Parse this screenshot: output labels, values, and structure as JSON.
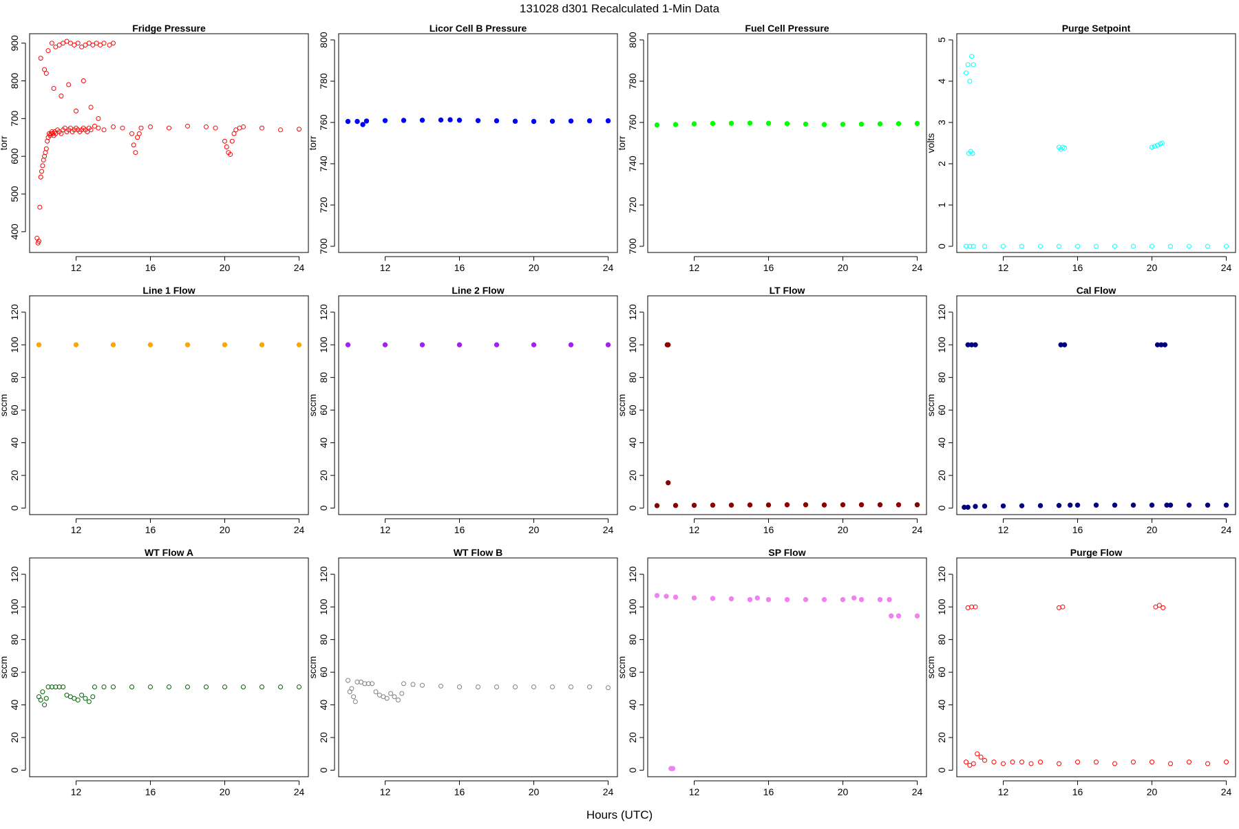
{
  "page": {
    "title": "131028   d301   Recalculated 1-Min Data",
    "xlabel": "Hours (UTC)"
  },
  "chart_data": [
    {
      "type": "scatter",
      "title": "Fridge Pressure",
      "ylabel": "torr",
      "xlim": [
        9.5,
        24.5
      ],
      "ylim": [
        345,
        925
      ],
      "xticks": [
        12,
        16,
        20,
        24
      ],
      "yticks": [
        400,
        500,
        600,
        700,
        800,
        900
      ],
      "color": "#ff0000",
      "marker": "open-circle",
      "series": [
        {
          "name": "",
          "x": [
            9.9,
            9.95,
            10.0,
            10.05,
            10.1,
            10.15,
            10.2,
            10.25,
            10.3,
            10.35,
            10.4,
            10.45,
            10.5,
            10.55,
            10.6,
            10.65,
            10.7,
            10.75,
            10.8,
            10.85,
            10.9,
            11.0,
            11.1,
            11.2,
            11.3,
            11.4,
            11.5,
            11.6,
            11.7,
            11.8,
            11.9,
            12.0,
            12.1,
            12.2,
            12.3,
            12.4,
            12.5,
            12.6,
            12.7,
            12.8,
            13.0,
            13.2,
            13.5,
            14.0,
            14.5,
            15.0,
            15.1,
            15.2,
            15.3,
            15.4,
            15.5,
            16.0,
            17.0,
            18.0,
            19.0,
            19.5,
            20.0,
            20.1,
            20.2,
            20.3,
            20.4,
            20.5,
            20.6,
            20.8,
            21.0,
            22.0,
            23.0,
            24.0,
            10.1,
            10.3,
            10.5,
            10.7,
            10.9,
            11.1,
            11.3,
            11.5,
            11.7,
            11.9,
            12.1,
            12.3,
            12.5,
            12.7,
            12.9,
            13.1,
            13.3,
            13.5,
            13.8,
            14.0,
            10.4,
            10.8,
            11.2,
            11.6,
            12.0,
            12.4,
            12.8,
            13.2
          ],
          "y": [
            383,
            370,
            375,
            465,
            545,
            560,
            575,
            590,
            600,
            610,
            620,
            640,
            650,
            660,
            655,
            660,
            665,
            660,
            655,
            665,
            660,
            670,
            665,
            660,
            670,
            675,
            665,
            670,
            675,
            665,
            670,
            675,
            670,
            665,
            670,
            675,
            670,
            665,
            675,
            670,
            680,
            675,
            670,
            678,
            675,
            660,
            630,
            610,
            650,
            660,
            675,
            678,
            675,
            680,
            678,
            675,
            640,
            625,
            610,
            605,
            640,
            660,
            670,
            675,
            678,
            675,
            670,
            672,
            860,
            830,
            880,
            900,
            890,
            895,
            900,
            905,
            900,
            895,
            900,
            890,
            895,
            900,
            895,
            900,
            895,
            900,
            895,
            900,
            820,
            780,
            760,
            790,
            720,
            800,
            730,
            700
          ]
        }
      ]
    },
    {
      "type": "scatter",
      "title": "Licor Cell B Pressure",
      "ylabel": "torr",
      "xlim": [
        9.5,
        24.5
      ],
      "ylim": [
        697,
        803
      ],
      "xticks": [
        12,
        16,
        20,
        24
      ],
      "yticks": [
        700,
        720,
        740,
        760,
        780,
        800
      ],
      "color": "#0000ff",
      "marker": "filled-band",
      "series": [
        {
          "name": "",
          "x": [
            10.0,
            10.5,
            10.8,
            11.0,
            12.0,
            13.0,
            14.0,
            15.0,
            15.5,
            16.0,
            17.0,
            18.0,
            19.0,
            20.0,
            21.0,
            22.0,
            23.0,
            24.0
          ],
          "y": [
            760.5,
            760.5,
            759,
            760.7,
            760.9,
            761.0,
            761.1,
            761.2,
            761.3,
            761.1,
            760.9,
            760.8,
            760.6,
            760.5,
            760.6,
            760.7,
            760.8,
            760.8
          ]
        }
      ]
    },
    {
      "type": "scatter",
      "title": "Fuel Cell Pressure",
      "ylabel": "torr",
      "xlim": [
        9.5,
        24.5
      ],
      "ylim": [
        697,
        803
      ],
      "xticks": [
        12,
        16,
        20,
        24
      ],
      "yticks": [
        700,
        720,
        740,
        760,
        780,
        800
      ],
      "color": "#00ff00",
      "marker": "filled-band",
      "series": [
        {
          "name": "",
          "x": [
            10.0,
            11.0,
            12.0,
            13.0,
            14.0,
            15.0,
            16.0,
            17.0,
            18.0,
            19.0,
            20.0,
            21.0,
            22.0,
            23.0,
            24.0
          ],
          "y": [
            758.8,
            759.0,
            759.3,
            759.5,
            759.6,
            759.7,
            759.6,
            759.4,
            759.2,
            759.0,
            759.1,
            759.2,
            759.3,
            759.4,
            759.5
          ]
        }
      ]
    },
    {
      "type": "scatter",
      "title": "Purge Setpoint",
      "ylabel": "volts",
      "xlim": [
        9.5,
        24.5
      ],
      "ylim": [
        -0.15,
        5.15
      ],
      "xticks": [
        12,
        16,
        20,
        24
      ],
      "yticks": [
        0,
        1,
        2,
        3,
        4,
        5
      ],
      "color": "#00ffff",
      "marker": "open-circle",
      "series": [
        {
          "name": "",
          "x": [
            10.0,
            10.2,
            10.4,
            11.0,
            12.0,
            13.0,
            14.0,
            15.0,
            16.0,
            17.0,
            18.0,
            19.0,
            20.0,
            21.0,
            22.0,
            23.0,
            24.0,
            10.0,
            10.1,
            10.2,
            10.3,
            10.4,
            10.15,
            10.25,
            10.35,
            15.0,
            15.1,
            15.2,
            15.3,
            20.0,
            20.15,
            20.3,
            20.45,
            20.55
          ],
          "y": [
            0,
            0,
            0,
            0,
            0,
            0,
            0,
            0,
            0,
            0,
            0,
            0,
            0,
            0,
            0,
            0,
            0,
            4.2,
            4.4,
            4.0,
            4.6,
            4.4,
            2.25,
            2.3,
            2.25,
            2.4,
            2.35,
            2.4,
            2.38,
            2.4,
            2.42,
            2.45,
            2.48,
            2.5
          ]
        }
      ]
    },
    {
      "type": "scatter",
      "title": "Line 1 Flow",
      "ylabel": "sccm",
      "xlim": [
        9.5,
        24.5
      ],
      "ylim": [
        -4,
        130
      ],
      "xticks": [
        12,
        16,
        20,
        24
      ],
      "yticks": [
        0,
        20,
        40,
        60,
        80,
        100,
        120
      ],
      "color": "#ffa500",
      "marker": "filled-band",
      "series": [
        {
          "name": "",
          "x": [
            10.0,
            12.0,
            14.0,
            16.0,
            18.0,
            20.0,
            22.0,
            24.0
          ],
          "y": [
            100,
            100,
            100,
            100,
            100,
            100,
            100,
            100
          ]
        }
      ]
    },
    {
      "type": "scatter",
      "title": "Line 2 Flow",
      "ylabel": "sccm",
      "xlim": [
        9.5,
        24.5
      ],
      "ylim": [
        -4,
        130
      ],
      "xticks": [
        12,
        16,
        20,
        24
      ],
      "yticks": [
        0,
        20,
        40,
        60,
        80,
        100,
        120
      ],
      "color": "#a020f0",
      "marker": "filled-band",
      "series": [
        {
          "name": "",
          "x": [
            10.0,
            12.0,
            14.0,
            16.0,
            18.0,
            20.0,
            22.0,
            24.0
          ],
          "y": [
            100,
            100,
            100,
            100,
            100,
            100,
            100,
            100
          ]
        }
      ]
    },
    {
      "type": "scatter",
      "title": "LT Flow",
      "ylabel": "sccm",
      "xlim": [
        9.5,
        24.5
      ],
      "ylim": [
        -4,
        130
      ],
      "xticks": [
        12,
        16,
        20,
        24
      ],
      "yticks": [
        0,
        20,
        40,
        60,
        80,
        100,
        120
      ],
      "color": "#8b0000",
      "marker": "filled-band",
      "series": [
        {
          "name": "",
          "x": [
            10.0,
            11.0,
            12.0,
            13.0,
            14.0,
            15.0,
            16.0,
            17.0,
            18.0,
            19.0,
            20.0,
            21.0,
            22.0,
            23.0,
            24.0,
            10.55,
            10.6,
            10.6
          ],
          "y": [
            1.5,
            1.6,
            1.7,
            1.8,
            1.8,
            1.9,
            1.9,
            2.0,
            2.0,
            1.9,
            2.0,
            2.0,
            2.0,
            2.0,
            2.0,
            100,
            100,
            15.5
          ]
        }
      ]
    },
    {
      "type": "scatter",
      "title": "Cal Flow",
      "ylabel": "sccm",
      "xlim": [
        9.5,
        24.5
      ],
      "ylim": [
        -4,
        130
      ],
      "xticks": [
        12,
        16,
        20,
        24
      ],
      "yticks": [
        0,
        20,
        40,
        60,
        80,
        100,
        120
      ],
      "color": "#000080",
      "marker": "filled-band",
      "series": [
        {
          "name": "",
          "x": [
            9.9,
            10.1,
            10.5,
            11.0,
            12.0,
            13.0,
            14.0,
            15.0,
            15.6,
            16.0,
            17.0,
            18.0,
            19.0,
            20.0,
            20.8,
            21.0,
            22.0,
            23.0,
            24.0,
            10.1,
            10.3,
            10.5,
            15.1,
            15.3,
            20.3,
            20.5,
            20.7
          ],
          "y": [
            0.5,
            0.5,
            1.0,
            1.2,
            1.3,
            1.4,
            1.5,
            1.6,
            1.8,
            1.8,
            1.8,
            1.8,
            1.8,
            1.8,
            1.8,
            1.8,
            1.8,
            1.8,
            1.8,
            100,
            100,
            100,
            100,
            100,
            100,
            100,
            100
          ]
        }
      ]
    },
    {
      "type": "scatter",
      "title": "WT Flow A",
      "ylabel": "sccm",
      "xlim": [
        9.5,
        24.5
      ],
      "ylim": [
        -4,
        130
      ],
      "xticks": [
        12,
        16,
        20,
        24
      ],
      "yticks": [
        0,
        20,
        40,
        60,
        80,
        100,
        120
      ],
      "color": "#006400",
      "marker": "open-circle",
      "series": [
        {
          "name": "",
          "x": [
            10.0,
            10.1,
            10.2,
            10.3,
            10.4,
            10.5,
            10.7,
            10.9,
            11.1,
            11.3,
            11.5,
            11.7,
            11.9,
            12.1,
            12.3,
            12.5,
            12.7,
            12.9,
            13.0,
            13.5,
            14.0,
            15.0,
            16.0,
            17.0,
            18.0,
            19.0,
            20.0,
            21.0,
            22.0,
            23.0,
            24.0
          ],
          "y": [
            45,
            43,
            48,
            40,
            44,
            51,
            51,
            51,
            51,
            51,
            46,
            45,
            44,
            43,
            46,
            44,
            42,
            45,
            51,
            51,
            51,
            51,
            51,
            51,
            51,
            51,
            51,
            51,
            51,
            51,
            51
          ]
        }
      ]
    },
    {
      "type": "scatter",
      "title": "WT Flow B",
      "ylabel": "sccm",
      "xlim": [
        9.5,
        24.5
      ],
      "ylim": [
        -4,
        130
      ],
      "xticks": [
        12,
        16,
        20,
        24
      ],
      "yticks": [
        0,
        20,
        40,
        60,
        80,
        100,
        120
      ],
      "color": "#808080",
      "marker": "open-circle",
      "series": [
        {
          "name": "",
          "x": [
            10.0,
            10.1,
            10.2,
            10.3,
            10.4,
            10.5,
            10.7,
            10.9,
            11.1,
            11.3,
            11.5,
            11.7,
            11.9,
            12.1,
            12.3,
            12.5,
            12.7,
            12.9,
            13.0,
            13.5,
            14.0,
            15.0,
            16.0,
            17.0,
            18.0,
            19.0,
            20.0,
            21.0,
            22.0,
            23.0,
            24.0
          ],
          "y": [
            55,
            48,
            50,
            45,
            42,
            54,
            54,
            53,
            53,
            53,
            48,
            46,
            45,
            44,
            47,
            45,
            43,
            47,
            53,
            52.5,
            52,
            51.5,
            51,
            51,
            51,
            51,
            51,
            51,
            51,
            51,
            50.5
          ]
        }
      ]
    },
    {
      "type": "scatter",
      "title": "SP Flow",
      "ylabel": "sccm",
      "xlim": [
        9.5,
        24.5
      ],
      "ylim": [
        -4,
        130
      ],
      "xticks": [
        12,
        16,
        20,
        24
      ],
      "yticks": [
        0,
        20,
        40,
        60,
        80,
        100,
        120
      ],
      "color": "#ee82ee",
      "marker": "filled-band",
      "series": [
        {
          "name": "",
          "x": [
            10.0,
            10.5,
            11.0,
            12.0,
            13.0,
            14.0,
            15.0,
            15.4,
            16.0,
            17.0,
            18.0,
            19.0,
            20.0,
            20.6,
            21.0,
            22.0,
            22.5,
            22.6,
            23.0,
            24.0,
            10.75,
            10.85
          ],
          "y": [
            107,
            106.5,
            106,
            105.5,
            105.2,
            105,
            104.5,
            105.5,
            104.5,
            104.5,
            104.5,
            104.5,
            104.5,
            105.5,
            104.5,
            104.5,
            104.5,
            94.5,
            94.5,
            94.5,
            1,
            1
          ]
        }
      ]
    },
    {
      "type": "scatter",
      "title": "Purge Flow",
      "ylabel": "sccm",
      "xlim": [
        9.5,
        24.5
      ],
      "ylim": [
        -4,
        130
      ],
      "xticks": [
        12,
        16,
        20,
        24
      ],
      "yticks": [
        0,
        20,
        40,
        60,
        80,
        100,
        120
      ],
      "color": "#ff0000",
      "marker": "open-circle",
      "series": [
        {
          "name": "",
          "x": [
            10.0,
            10.2,
            10.4,
            10.6,
            10.8,
            11.0,
            11.5,
            12.0,
            12.5,
            13.0,
            13.5,
            14.0,
            15.0,
            16.0,
            17.0,
            18.0,
            19.0,
            20.0,
            21.0,
            22.0,
            23.0,
            24.0,
            10.1,
            10.3,
            10.5,
            15.0,
            15.2,
            20.2,
            20.4,
            20.6
          ],
          "y": [
            5,
            3,
            4,
            10,
            8,
            6,
            5,
            4,
            5,
            5,
            4,
            5,
            4,
            5,
            5,
            4,
            5,
            5,
            4,
            5,
            4,
            5,
            99.5,
            100,
            100,
            99.5,
            100,
            100,
            101,
            99.5
          ]
        }
      ]
    }
  ]
}
